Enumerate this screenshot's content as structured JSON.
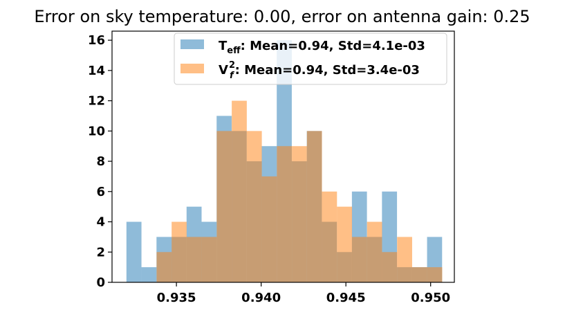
{
  "chart_data": {
    "type": "histogram",
    "title": "Error on sky temperature: 0.00, error on antenna gain: 0.25",
    "xlabel": "",
    "ylabel": "",
    "xlim": [
      0.9312,
      0.9514
    ],
    "ylim": [
      0,
      16.6
    ],
    "bin_edges": [
      0.93205,
      0.93383,
      0.9356,
      0.93738,
      0.93915,
      0.94093,
      0.9427,
      0.94448,
      0.94625,
      0.94803,
      0.9498,
      0.9504
    ],
    "xticks": [
      0.935,
      0.94,
      0.945,
      0.95
    ],
    "xtick_labels": [
      "0.935",
      "0.940",
      "0.945",
      "0.950"
    ],
    "yticks": [
      0,
      2,
      4,
      6,
      8,
      10,
      12,
      14,
      16
    ],
    "ytick_labels": [
      "0",
      "2",
      "4",
      "6",
      "8",
      "10",
      "12",
      "14",
      "16"
    ],
    "grid": false,
    "legend_position": "top-right",
    "series": [
      {
        "name": "T_eff: Mean=0.94, Std=4.1e-03",
        "legend_main": "T",
        "legend_sub": "eff",
        "legend_rest": ": Mean=0.94, Std=4.1e-03",
        "color": "#1f77b4",
        "alpha": 0.5,
        "bin_start": 0.93205,
        "bin_width": 0.000887,
        "counts": [
          4,
          1,
          3,
          3,
          5,
          4,
          11,
          10,
          8,
          9,
          16,
          8,
          10,
          4,
          2,
          6,
          3,
          6,
          1,
          1,
          3
        ]
      },
      {
        "name": "V_f^2: Mean=0.94, Std=3.4e-03",
        "legend_main": "V",
        "legend_sub": "f",
        "legend_sup": "2",
        "legend_rest": ": Mean=0.94, Std=3.4e-03",
        "color": "#ff7f0e",
        "alpha": 0.5,
        "bin_start": 0.93383,
        "bin_width": 0.000887,
        "counts": [
          2,
          4,
          3,
          3,
          10,
          12,
          10,
          7,
          9,
          9,
          10,
          6,
          5,
          3,
          4,
          2,
          3,
          1,
          1
        ]
      }
    ]
  }
}
